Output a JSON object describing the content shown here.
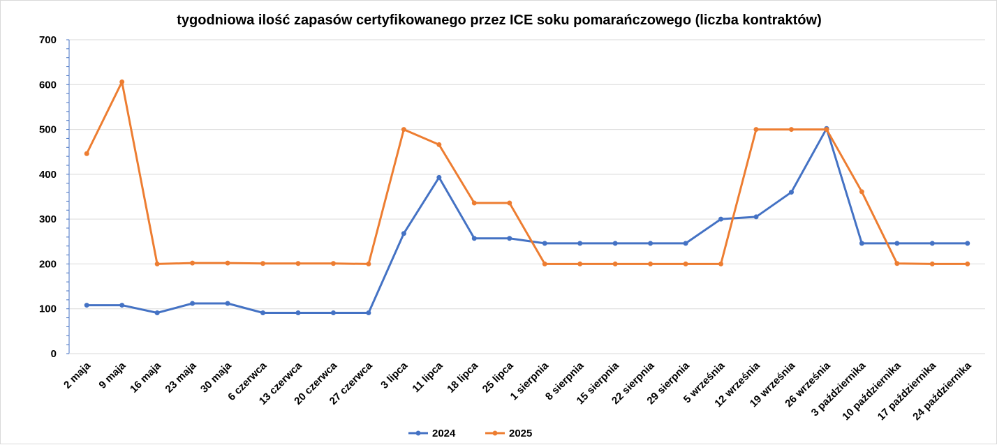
{
  "chart_data": {
    "type": "line",
    "title": "tygodniowa ilość zapasów certyfikowanego przez ICE soku pomarańczowego (liczba kontraktów)",
    "xlabel": "",
    "ylabel": "",
    "ylim": [
      0,
      700
    ],
    "yticks": [
      "0",
      "100",
      "200",
      "300",
      "400",
      "500",
      "600",
      "700"
    ],
    "grid": true,
    "legend_position": "bottom",
    "categories": [
      "2 maja",
      "9 maja",
      "16 maja",
      "23 maja",
      "30 maja",
      "6 czerwca",
      "13 czerwca",
      "20 czerwca",
      "27 czerwca",
      "3 lipca",
      "11 lipca",
      "18 lipca",
      "25 lipca",
      "1 sierpnia",
      "8 sierpnia",
      "15 sierpnia",
      "22 sierpnia",
      "29 sierpnia",
      "5 września",
      "12 września",
      "19 września",
      "26 września",
      "3 października",
      "10 października",
      "17 października",
      "24 października"
    ],
    "series": [
      {
        "name": "2024",
        "color": "#4472C4",
        "values": [
          108,
          108,
          91,
          112,
          112,
          91,
          91,
          91,
          91,
          268,
          393,
          257,
          257,
          246,
          246,
          246,
          246,
          246,
          300,
          305,
          360,
          502,
          246,
          246,
          246,
          246
        ]
      },
      {
        "name": "2025",
        "color": "#ED7D31",
        "values": [
          446,
          606,
          200,
          202,
          202,
          201,
          201,
          201,
          200,
          500,
          466,
          336,
          336,
          200,
          200,
          200,
          200,
          200,
          200,
          500,
          500,
          500,
          361,
          201,
          200,
          200
        ]
      }
    ]
  }
}
